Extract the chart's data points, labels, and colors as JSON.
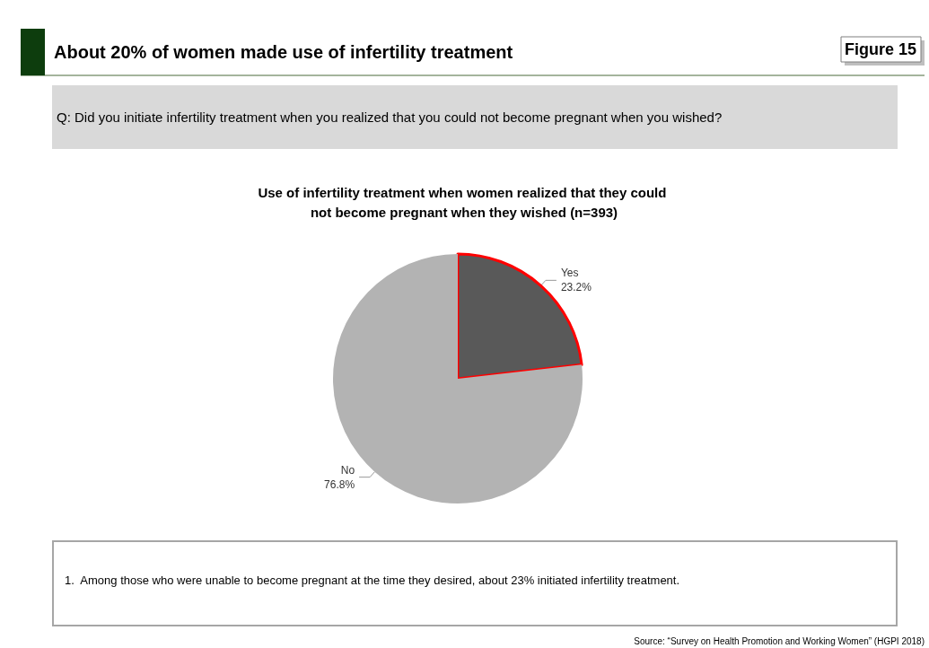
{
  "chart_data": {
    "type": "pie",
    "title": "About 20% of women made use of infertility treatment",
    "subtitle": "Q: Did you initiate infertility treatment when you realized that you could not become pregnant when you wished?",
    "annotations": [
      "Figure 15",
      "Use of infertility treatment when women realized that they could not become pregnant when they wished (n=393)",
      "1.  Among those who were unable to become pregnant at the time they desired, about 23% initiated infertility treatment.",
      "Source: “Survey on Health Promotion and Working Women” (HGPI 2018)"
    ],
    "categories": [
      "Yes",
      "No"
    ],
    "values": [
      23.2,
      76.8
    ],
    "colors": [
      "#595959",
      "#b3b3b3"
    ],
    "value_labels": [
      "23.2%",
      "76.8%"
    ],
    "legend": false
  }
}
